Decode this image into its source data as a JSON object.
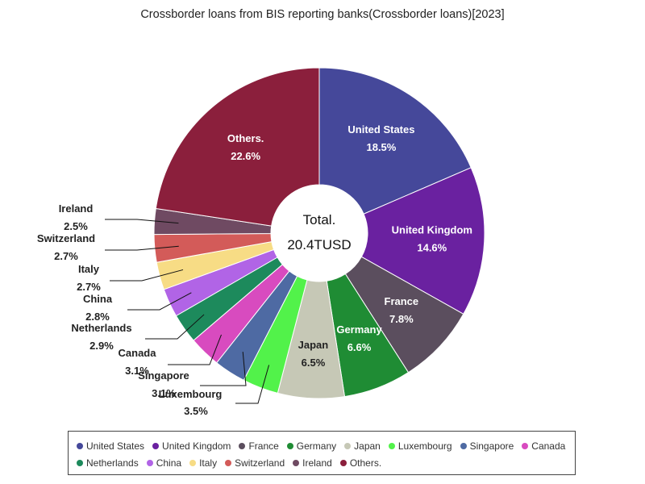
{
  "chart_data": {
    "type": "pie",
    "title": "Crossborder loans from BIS reporting banks(Crossborder loans)[2023]",
    "center_label": "Total.",
    "center_value": "20.4TUSD",
    "slices": [
      {
        "name": "United States",
        "value": 18.5,
        "label": "18.5%",
        "color": "#45489a"
      },
      {
        "name": "United Kingdom",
        "value": 14.6,
        "label": "14.6%",
        "color": "#6a21a0"
      },
      {
        "name": "France",
        "value": 7.8,
        "label": "7.8%",
        "color": "#5b4e5e"
      },
      {
        "name": "Germany",
        "value": 6.6,
        "label": "6.6%",
        "color": "#1f8c34"
      },
      {
        "name": "Japan",
        "value": 6.5,
        "label": "6.5%",
        "color": "#c6c8b6"
      },
      {
        "name": "Luxembourg",
        "value": 3.5,
        "label": "3.5%",
        "color": "#52f24a"
      },
      {
        "name": "Singapore",
        "value": 3.1,
        "label": "3.1%",
        "color": "#4e6aa3"
      },
      {
        "name": "Canada",
        "value": 3.1,
        "label": "3.1%",
        "color": "#d84bbf"
      },
      {
        "name": "Netherlands",
        "value": 2.9,
        "label": "2.9%",
        "color": "#1d8a5c"
      },
      {
        "name": "China",
        "value": 2.8,
        "label": "2.8%",
        "color": "#b164e6"
      },
      {
        "name": "Italy",
        "value": 2.7,
        "label": "2.7%",
        "color": "#f7dc85"
      },
      {
        "name": "Switzerland",
        "value": 2.7,
        "label": "2.7%",
        "color": "#d35b59"
      },
      {
        "name": "Ireland",
        "value": 2.5,
        "label": "2.5%",
        "color": "#6f4a62"
      },
      {
        "name": "Others.",
        "value": 22.6,
        "label": "22.6%",
        "color": "#8b1f3c"
      }
    ],
    "legend_position": "bottom"
  }
}
